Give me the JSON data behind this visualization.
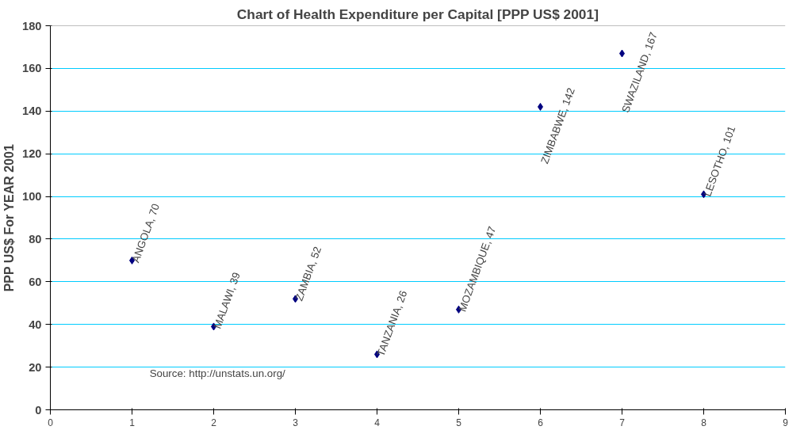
{
  "chart_data": {
    "type": "scatter",
    "title": "Chart of Health Expenditure per Capital [PPP US$ 2001]",
    "ylabel": "PPP US$ For YEAR 2001",
    "x": [
      1,
      2,
      3,
      4,
      5,
      6,
      7,
      8
    ],
    "series": [
      {
        "color": "#000080",
        "values": [
          70,
          39,
          52,
          26,
          47,
          142,
          167,
          101
        ]
      }
    ],
    "annotations": [
      {
        "text": "ANGOLA, 70",
        "x": 1,
        "y": 70
      },
      {
        "text": "MALAWI, 39",
        "x": 2,
        "y": 39
      },
      {
        "text": "ZAMBIA, 52",
        "x": 3,
        "y": 52
      },
      {
        "text": "TANZANIA, 26",
        "x": 4,
        "y": 26
      },
      {
        "text": "MOZAMBIQUE, 47",
        "x": 5,
        "y": 47
      },
      {
        "text": "ZIMBABWE, 142",
        "x": 6,
        "y": 142
      },
      {
        "text": "SWAZILAND, 167",
        "x": 7,
        "y": 167
      },
      {
        "text": "LESOTHO, 101",
        "x": 8,
        "y": 101
      },
      "Source: http://unstats.un.org/"
    ],
    "xlim": [
      0,
      9
    ],
    "ylim": [
      0,
      180
    ],
    "xticks": [
      0,
      1,
      2,
      3,
      4,
      5,
      6,
      7,
      8,
      9
    ],
    "yticks": [
      0,
      20,
      40,
      60,
      80,
      100,
      120,
      140,
      160,
      180
    ],
    "grid": "y",
    "marker": "diamond"
  }
}
